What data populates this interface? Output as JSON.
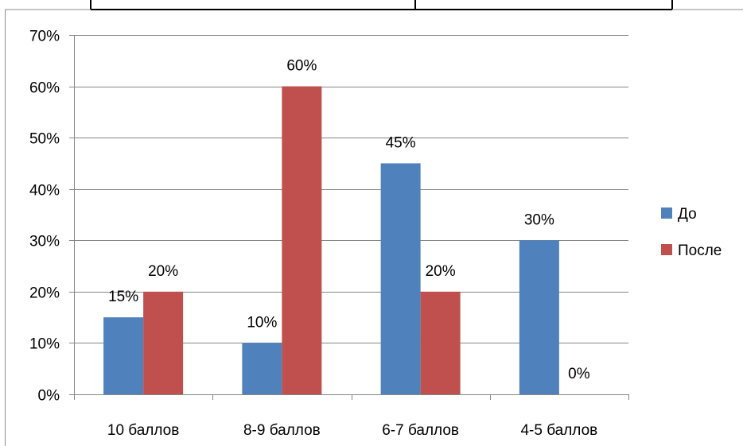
{
  "chart_data": {
    "type": "bar",
    "categories": [
      "10 баллов",
      "8-9 баллов",
      "6-7 баллов",
      "4-5 баллов"
    ],
    "series": [
      {
        "name": "До",
        "values": [
          15,
          10,
          45,
          30
        ],
        "labels": [
          "15%",
          "10%",
          "45%",
          "30%"
        ],
        "color": "#4f81bd"
      },
      {
        "name": "После",
        "values": [
          20,
          60,
          20,
          0
        ],
        "labels": [
          "20%",
          "60%",
          "20%",
          "0%"
        ],
        "color": "#c0504d"
      }
    ],
    "y_ticks": [
      "0%",
      "10%",
      "20%",
      "30%",
      "40%",
      "50%",
      "60%",
      "70%"
    ],
    "ylim": [
      0,
      70
    ],
    "grid": true,
    "legend_position": "right"
  }
}
